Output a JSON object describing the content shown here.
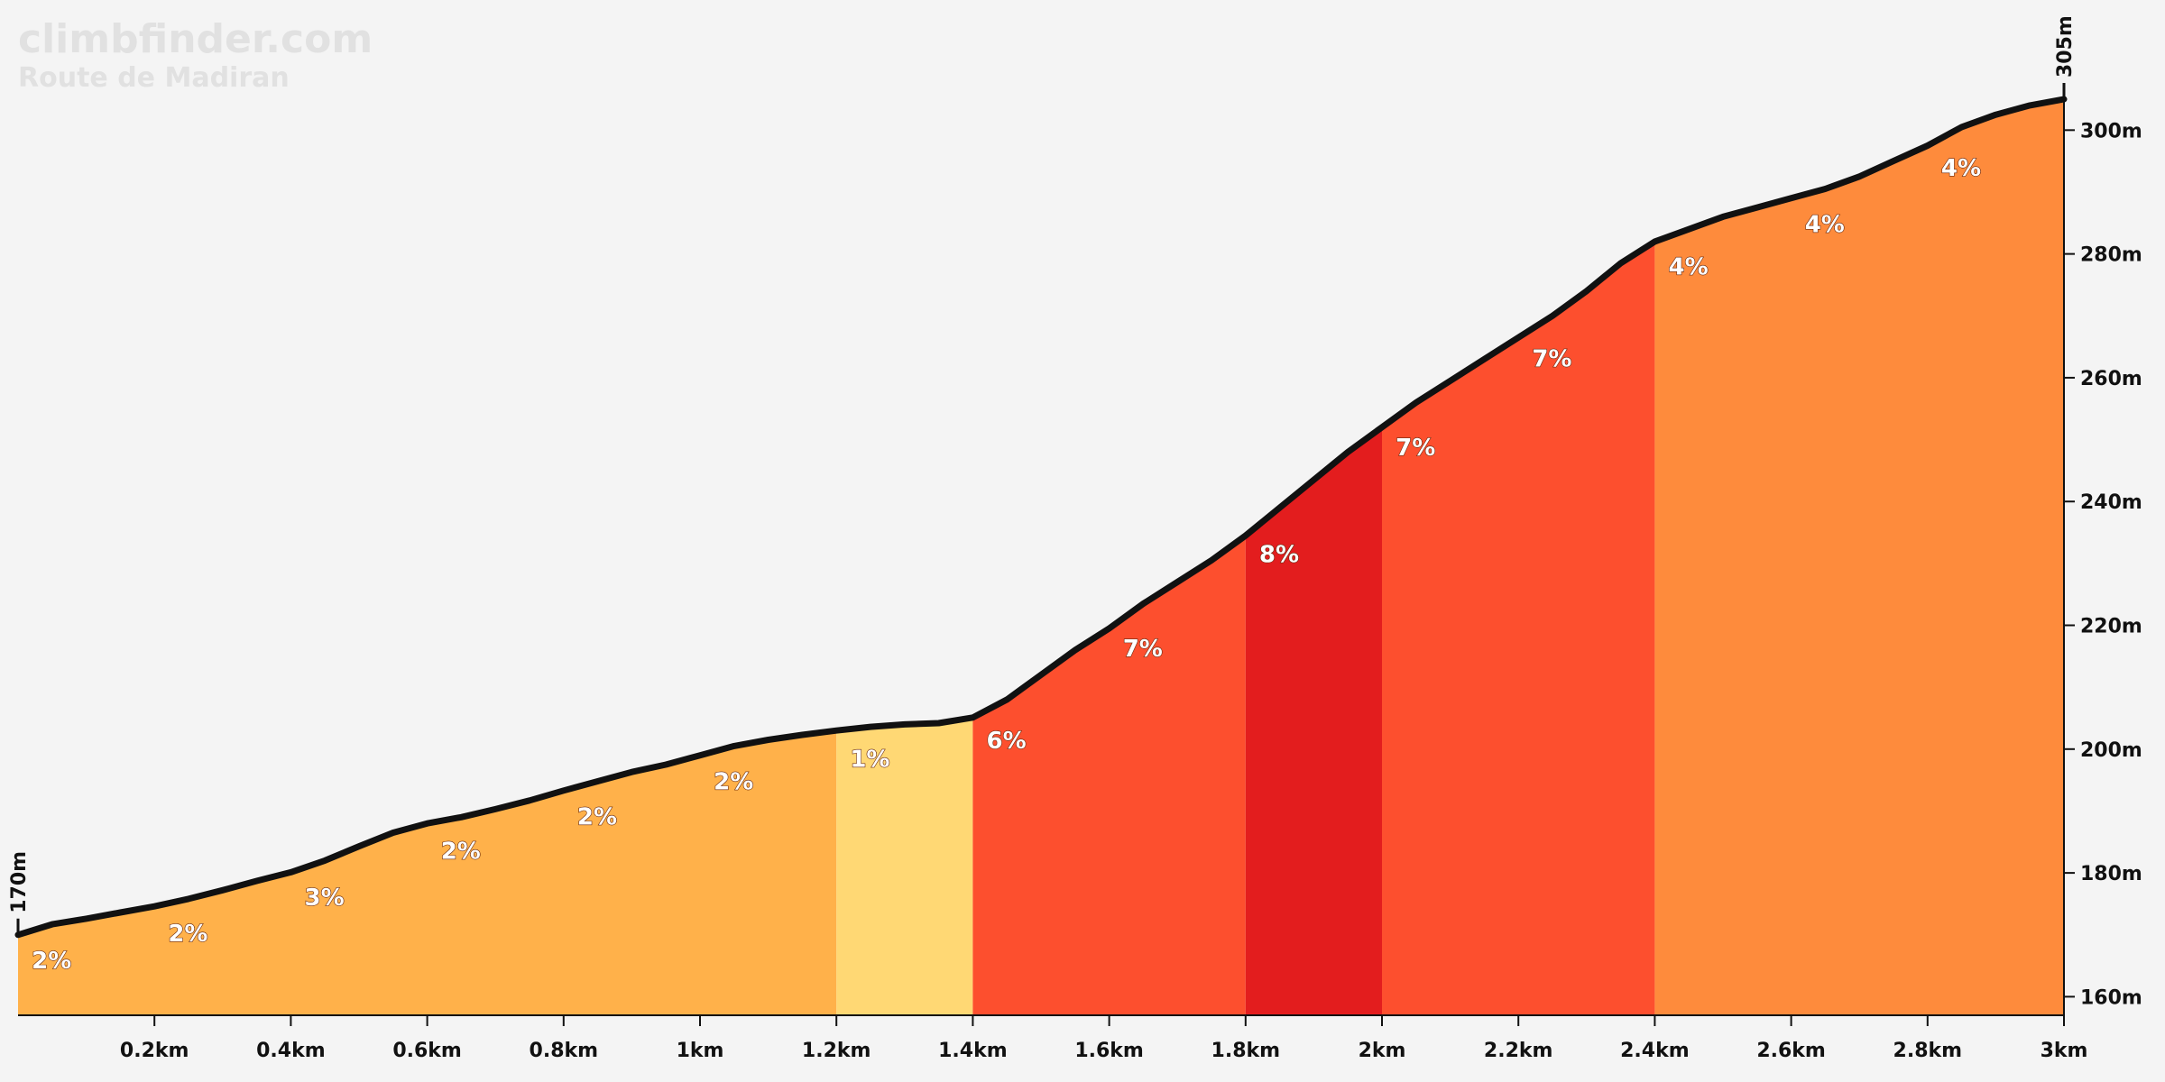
{
  "branding": {
    "site": "climbfinder.com",
    "climb_name": "Route de Madiran"
  },
  "chart_data": {
    "type": "area",
    "title": "Route de Madiran",
    "xlabel": "",
    "ylabel": "",
    "x_unit": "km",
    "y_unit": "m",
    "xlim": [
      0,
      3
    ],
    "ylim": [
      157,
      305
    ],
    "x_ticks": [
      0.2,
      0.4,
      0.6,
      0.8,
      1.0,
      1.2,
      1.4,
      1.6,
      1.8,
      2.0,
      2.2,
      2.4,
      2.6,
      2.8,
      3.0
    ],
    "x_tick_labels": [
      "0.2km",
      "0.4km",
      "0.6km",
      "0.8km",
      "1km",
      "1.2km",
      "1.4km",
      "1.6km",
      "1.8km",
      "2km",
      "2.2km",
      "2.4km",
      "2.6km",
      "2.8km",
      "3km"
    ],
    "y_ticks": [
      160,
      180,
      200,
      220,
      240,
      260,
      280,
      300
    ],
    "y_tick_labels": [
      "160m",
      "180m",
      "200m",
      "220m",
      "240m",
      "260m",
      "280m",
      "300m"
    ],
    "start_label": "170m",
    "end_label": "305m",
    "profile": {
      "x": [
        0,
        0.05,
        0.1,
        0.15,
        0.2,
        0.25,
        0.3,
        0.35,
        0.4,
        0.45,
        0.5,
        0.55,
        0.6,
        0.65,
        0.7,
        0.75,
        0.8,
        0.85,
        0.9,
        0.95,
        1.0,
        1.05,
        1.1,
        1.15,
        1.2,
        1.25,
        1.3,
        1.35,
        1.4,
        1.45,
        1.5,
        1.55,
        1.6,
        1.65,
        1.7,
        1.75,
        1.8,
        1.85,
        1.9,
        1.95,
        2.0,
        2.05,
        2.1,
        2.15,
        2.2,
        2.25,
        2.3,
        2.35,
        2.4,
        2.45,
        2.5,
        2.55,
        2.6,
        2.65,
        2.7,
        2.75,
        2.8,
        2.85,
        2.9,
        2.95,
        3.0
      ],
      "y": [
        170,
        171.7,
        172.6,
        173.6,
        174.6,
        175.8,
        177.2,
        178.7,
        180.1,
        182.0,
        184.3,
        186.5,
        188.0,
        189.0,
        190.3,
        191.7,
        193.3,
        194.8,
        196.3,
        197.5,
        199.0,
        200.5,
        201.5,
        202.3,
        203.0,
        203.6,
        204.0,
        204.2,
        205.1,
        208.0,
        212.0,
        216.0,
        219.5,
        223.5,
        227.0,
        230.5,
        234.5,
        239.0,
        243.5,
        248.0,
        252.0,
        256.0,
        259.5,
        263.0,
        266.5,
        270.0,
        274.0,
        278.5,
        282.0,
        284.0,
        286.0,
        287.5,
        289.0,
        290.5,
        292.5,
        295.0,
        297.5,
        300.5,
        302.5,
        304.0,
        305.0
      ]
    },
    "segments": [
      {
        "x0": 0.0,
        "x1": 1.2,
        "grade_pct": 2,
        "color": "#ffb14a"
      },
      {
        "x0": 1.2,
        "x1": 1.4,
        "grade_pct": 1,
        "color": "#ffd874"
      },
      {
        "x0": 1.4,
        "x1": 1.8,
        "grade_pct": 7,
        "color": "#fd4f2e"
      },
      {
        "x0": 1.8,
        "x1": 2.0,
        "grade_pct": 8,
        "color": "#e31d1e"
      },
      {
        "x0": 2.0,
        "x1": 2.4,
        "grade_pct": 7,
        "color": "#fd4f2e"
      },
      {
        "x0": 2.4,
        "x1": 3.0,
        "grade_pct": 4,
        "color": "#fe8b3c"
      }
    ],
    "grade_labels": [
      {
        "x": 0.02,
        "text": "2%"
      },
      {
        "x": 0.22,
        "text": "2%"
      },
      {
        "x": 0.42,
        "text": "3%"
      },
      {
        "x": 0.62,
        "text": "2%"
      },
      {
        "x": 0.82,
        "text": "2%"
      },
      {
        "x": 1.02,
        "text": "2%"
      },
      {
        "x": 1.22,
        "text": "1%"
      },
      {
        "x": 1.42,
        "text": "6%"
      },
      {
        "x": 1.62,
        "text": "7%"
      },
      {
        "x": 1.82,
        "text": "8%"
      },
      {
        "x": 2.02,
        "text": "7%"
      },
      {
        "x": 2.22,
        "text": "7%"
      },
      {
        "x": 2.42,
        "text": "4%"
      },
      {
        "x": 2.62,
        "text": "4%"
      },
      {
        "x": 2.82,
        "text": "4%"
      }
    ],
    "line_color": "#111111"
  }
}
